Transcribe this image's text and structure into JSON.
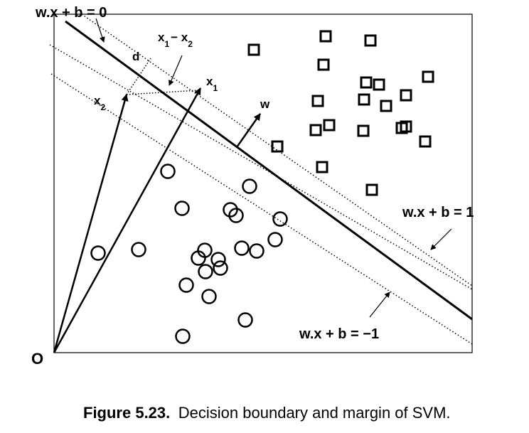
{
  "diagram": {
    "labels": {
      "boundary": "w.x + b = 0",
      "plus_margin": "w.x + b = 1",
      "minus_margin": "w.x + b = −1",
      "normal": "w",
      "distance": "d",
      "x1_main": "x",
      "x1_sub": "1",
      "x2_main": "x",
      "x2_sub": "2",
      "diff_x": "x",
      "diff_sub1": "1",
      "diff_minus": "− x",
      "diff_sub2": "2",
      "origin": "O"
    },
    "squares": {
      "count": 24,
      "class": "positive"
    },
    "circles": {
      "count": 27,
      "class": "negative"
    }
  },
  "caption": {
    "figure_label": "Figure 5.23.",
    "text": "Decision boundary and margin of SVM."
  }
}
